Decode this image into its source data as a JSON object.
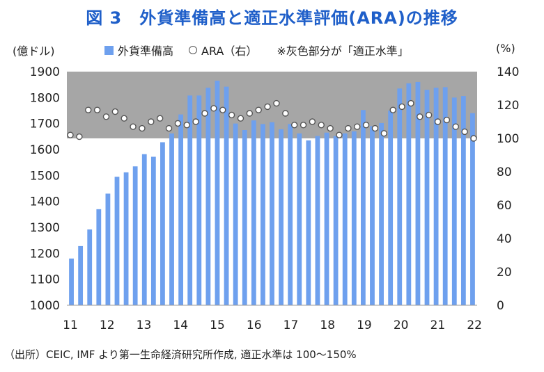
{
  "title": "図 3　外貨準備高と適正水準評価(ARA)の推移",
  "left_unit": "(億ドル)",
  "right_unit": "(%)",
  "legend": {
    "bars_label": "外貨準備高",
    "line_label": "ARA（右）",
    "note": "※灰色部分が「適正水準」"
  },
  "source": "（出所）CEIC, IMF より第一生命経済研究所作成, 適正水準は 100～150%",
  "colors": {
    "bar": "#6ea0ee",
    "band": "#a6a6a6",
    "title": "#1f5fc9",
    "marker": "#555555"
  },
  "chart_data": {
    "type": "bar",
    "x_tick_labels": [
      "11",
      "12",
      "13",
      "14",
      "15",
      "16",
      "17",
      "18",
      "19",
      "20",
      "21",
      "22"
    ],
    "left_axis": {
      "ylim": [
        1000,
        1900
      ],
      "ticks": [
        1000,
        1100,
        1200,
        1300,
        1400,
        1500,
        1600,
        1700,
        1800,
        1900
      ]
    },
    "right_axis": {
      "ylim": [
        0,
        140
      ],
      "ticks": [
        0,
        20,
        40,
        60,
        80,
        100,
        120,
        140
      ]
    },
    "shaded_band_right_axis": [
      100,
      140
    ],
    "series": [
      {
        "name": "外貨準備高",
        "axis": "left",
        "type": "bar",
        "values": [
          1180,
          1228,
          1292,
          1370,
          1430,
          1495,
          1512,
          1535,
          1582,
          1572,
          1628,
          1662,
          1735,
          1808,
          1808,
          1838,
          1865,
          1842,
          1700,
          1675,
          1712,
          1698,
          1705,
          1678,
          1698,
          1662,
          1635,
          1652,
          1665,
          1652,
          1662,
          1670,
          1752,
          1690,
          1702,
          1750,
          1835,
          1855,
          1860,
          1830,
          1838,
          1840,
          1800,
          1806,
          1740
        ]
      },
      {
        "name": "ARA（右）",
        "axis": "right",
        "type": "scatter",
        "values": [
          102,
          101,
          117,
          117,
          113,
          116,
          112,
          107,
          106,
          110,
          112,
          106,
          109,
          108,
          110,
          115,
          118,
          117,
          114,
          112,
          115,
          117,
          119,
          121,
          115,
          108,
          108,
          110,
          108,
          106,
          102,
          106,
          107,
          108,
          106,
          103,
          117,
          119,
          121,
          113,
          114,
          110,
          111,
          107,
          104,
          100
        ]
      }
    ]
  }
}
